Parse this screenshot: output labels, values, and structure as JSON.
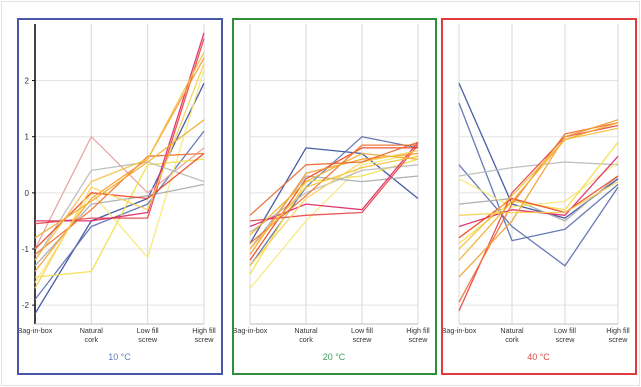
{
  "chart_data": {
    "type": "line",
    "subtype": "parallel-coordinates",
    "grid": true,
    "categories": [
      "Bag-in-box",
      "Natural cork",
      "Low fill screw",
      "High fill screw"
    ],
    "ylim": [
      -2.3,
      2.9
    ],
    "y_ticks": [
      "2",
      "1",
      "0",
      "-1",
      "-2"
    ],
    "panels": [
      {
        "label": "10 °C",
        "frame_color": "#4a56a8",
        "label_color": "#5a7fc0",
        "series": [
          {
            "color": "#3a4fa0",
            "values": [
              -2.15,
              -0.5,
              -0.1,
              1.95
            ]
          },
          {
            "color": "#5b6fb0",
            "values": [
              -1.9,
              -0.6,
              -0.2,
              1.1
            ]
          },
          {
            "color": "#e8a0a0",
            "values": [
              -1.0,
              1.0,
              0.0,
              0.8
            ]
          },
          {
            "color": "#f2e04a",
            "values": [
              -1.5,
              -1.4,
              0.5,
              0.6
            ]
          },
          {
            "color": "#f5e87a",
            "values": [
              -1.6,
              0.0,
              -1.15,
              2.2
            ]
          },
          {
            "color": "#bbbbbb",
            "values": [
              -1.2,
              0.4,
              0.55,
              0.2
            ]
          },
          {
            "color": "#aaaaaa",
            "values": [
              -1.3,
              -0.2,
              -0.05,
              0.15
            ]
          },
          {
            "color": "#e84848",
            "values": [
              -0.55,
              -0.45,
              -0.45,
              2.75
            ]
          },
          {
            "color": "#dd2a6a",
            "values": [
              -0.5,
              -0.5,
              -0.35,
              2.85
            ]
          },
          {
            "color": "#ee4422",
            "values": [
              -1.0,
              0.0,
              -0.1,
              0.7
            ]
          },
          {
            "color": "#f07030",
            "values": [
              -1.1,
              -0.3,
              0.65,
              0.7
            ]
          },
          {
            "color": "#f5a030",
            "values": [
              -1.4,
              -0.1,
              0.6,
              2.4
            ]
          },
          {
            "color": "#f5c040",
            "values": [
              -1.2,
              0.2,
              0.6,
              2.5
            ]
          },
          {
            "color": "#f7d050",
            "values": [
              -1.7,
              0.1,
              -0.3,
              2.3
            ]
          },
          {
            "color": "#f0b030",
            "values": [
              -0.8,
              -0.15,
              0.55,
              1.3
            ]
          }
        ]
      },
      {
        "label": "20 °C",
        "frame_color": "#2f8f3a",
        "label_color": "#3f9f5a",
        "series": [
          {
            "color": "#3a4fa0",
            "values": [
              -0.9,
              0.8,
              0.7,
              -0.1
            ]
          },
          {
            "color": "#5b6fb0",
            "values": [
              -1.3,
              0.1,
              1.0,
              0.8
            ]
          },
          {
            "color": "#f5e87a",
            "values": [
              -1.7,
              -0.5,
              0.5,
              0.7
            ]
          },
          {
            "color": "#f2e04a",
            "values": [
              -1.45,
              0.2,
              0.3,
              0.6
            ]
          },
          {
            "color": "#bbbbbb",
            "values": [
              -0.7,
              0.0,
              0.4,
              0.5
            ]
          },
          {
            "color": "#aaaaaa",
            "values": [
              -1.0,
              0.3,
              0.2,
              0.3
            ]
          },
          {
            "color": "#e84848",
            "values": [
              -0.5,
              -0.4,
              -0.35,
              0.85
            ]
          },
          {
            "color": "#dd2a6a",
            "values": [
              -0.6,
              -0.2,
              -0.3,
              0.9
            ]
          },
          {
            "color": "#ee4422",
            "values": [
              -1.2,
              0.25,
              0.8,
              0.8
            ]
          },
          {
            "color": "#f07030",
            "values": [
              -0.9,
              -0.05,
              0.85,
              0.85
            ]
          },
          {
            "color": "#f5a030",
            "values": [
              -1.1,
              0.35,
              0.6,
              0.7
            ]
          },
          {
            "color": "#f5c040",
            "values": [
              -1.0,
              0.1,
              0.45,
              0.65
            ]
          },
          {
            "color": "#f7d050",
            "values": [
              -1.3,
              -0.1,
              0.55,
              0.75
            ]
          },
          {
            "color": "#f0b030",
            "values": [
              -0.75,
              0.2,
              0.7,
              0.6
            ]
          },
          {
            "color": "#e86a30",
            "values": [
              -0.4,
              0.5,
              0.55,
              0.9
            ]
          }
        ]
      },
      {
        "label": "40 °C",
        "frame_color": "#e03a3a",
        "label_color": "#e04a4a",
        "series": [
          {
            "color": "#3a4fa0",
            "values": [
              1.95,
              -0.2,
              -0.45,
              0.25
            ]
          },
          {
            "color": "#5b6fb0",
            "values": [
              1.6,
              -0.85,
              -0.65,
              0.15
            ]
          },
          {
            "color": "#5b6fb0",
            "values": [
              0.5,
              -0.6,
              -1.3,
              0.1
            ]
          },
          {
            "color": "#bbbbbb",
            "values": [
              0.3,
              0.45,
              0.55,
              0.5
            ]
          },
          {
            "color": "#aaaaaa",
            "values": [
              -0.2,
              -0.1,
              -0.5,
              0.3
            ]
          },
          {
            "color": "#f5e87a",
            "values": [
              0.25,
              -0.25,
              -0.15,
              0.55
            ]
          },
          {
            "color": "#f2e04a",
            "values": [
              -0.9,
              -0.15,
              -0.3,
              0.9
            ]
          },
          {
            "color": "#e84848",
            "values": [
              -2.1,
              0.0,
              1.0,
              1.2
            ]
          },
          {
            "color": "#dd2a6a",
            "values": [
              -0.6,
              -0.3,
              -0.4,
              0.65
            ]
          },
          {
            "color": "#ee4422",
            "values": [
              -0.8,
              -0.1,
              -0.35,
              0.3
            ]
          },
          {
            "color": "#f07030",
            "values": [
              -1.95,
              -0.2,
              1.05,
              1.25
            ]
          },
          {
            "color": "#f5a030",
            "values": [
              -1.5,
              -0.5,
              1.0,
              1.3
            ]
          },
          {
            "color": "#f5c040",
            "values": [
              -1.0,
              -0.05,
              0.95,
              1.15
            ]
          },
          {
            "color": "#f7d050",
            "values": [
              -0.4,
              -0.35,
              -0.35,
              0.2
            ]
          },
          {
            "color": "#f0b030",
            "values": [
              -1.2,
              -0.15,
              0.95,
              1.25
            ]
          }
        ]
      }
    ]
  }
}
